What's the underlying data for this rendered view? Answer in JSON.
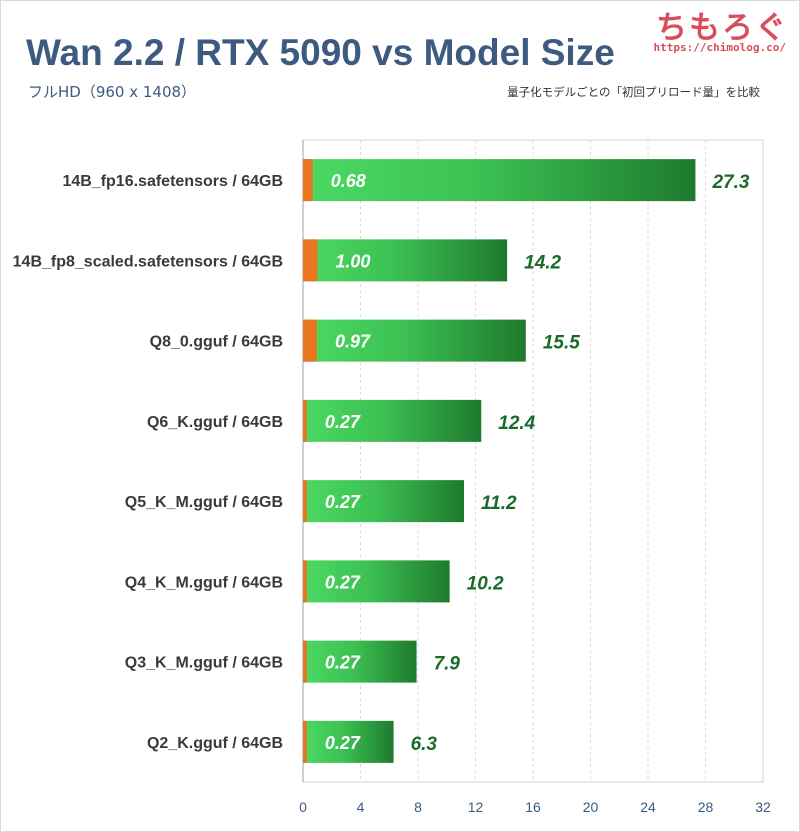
{
  "header": {
    "title": "Wan 2.2 / RTX 5090 vs Model Size",
    "subtitle": "フルHD（960 x 1408）",
    "note": "量子化モデルごとの「初回プリロード量」を比較",
    "brand_name": "ちもろぐ",
    "brand_url": "https://chimolog.co/"
  },
  "colors": {
    "title": "#3d5a80",
    "bar_light": "#4cd964",
    "bar_dark": "#1e7a2e",
    "preload_segment": "#e8761e",
    "total_label": "#1a6b2a",
    "brand": "#d94d5a"
  },
  "chart_data": {
    "type": "bar",
    "orientation": "horizontal",
    "categories": [
      "14B_fp16.safetensors / 64GB",
      "14B_fp8_scaled.safetensors / 64GB",
      "Q8_0.gguf / 64GB",
      "Q6_K.gguf / 64GB",
      "Q5_K_M.gguf / 64GB",
      "Q4_K_M.gguf / 64GB",
      "Q3_K_M.gguf / 64GB",
      "Q2_K.gguf / 64GB"
    ],
    "series": [
      {
        "values": [
          0.68,
          1.0,
          0.97,
          0.27,
          0.27,
          0.27,
          0.27,
          0.27
        ]
      },
      {
        "values": [
          27.3,
          14.2,
          15.5,
          12.4,
          11.2,
          10.2,
          7.9,
          6.3
        ]
      }
    ],
    "preload_labels": [
      "0.68",
      "1.00",
      "0.97",
      "0.27",
      "0.27",
      "0.27",
      "0.27",
      "0.27"
    ],
    "total_labels": [
      "27.3",
      "14.2",
      "15.5",
      "12.4",
      "11.2",
      "10.2",
      "7.9",
      "6.3"
    ],
    "xlim": [
      0,
      32
    ],
    "xticks": [
      0,
      4,
      8,
      12,
      16,
      20,
      24,
      28,
      32
    ],
    "grid": true,
    "legend": "none"
  }
}
